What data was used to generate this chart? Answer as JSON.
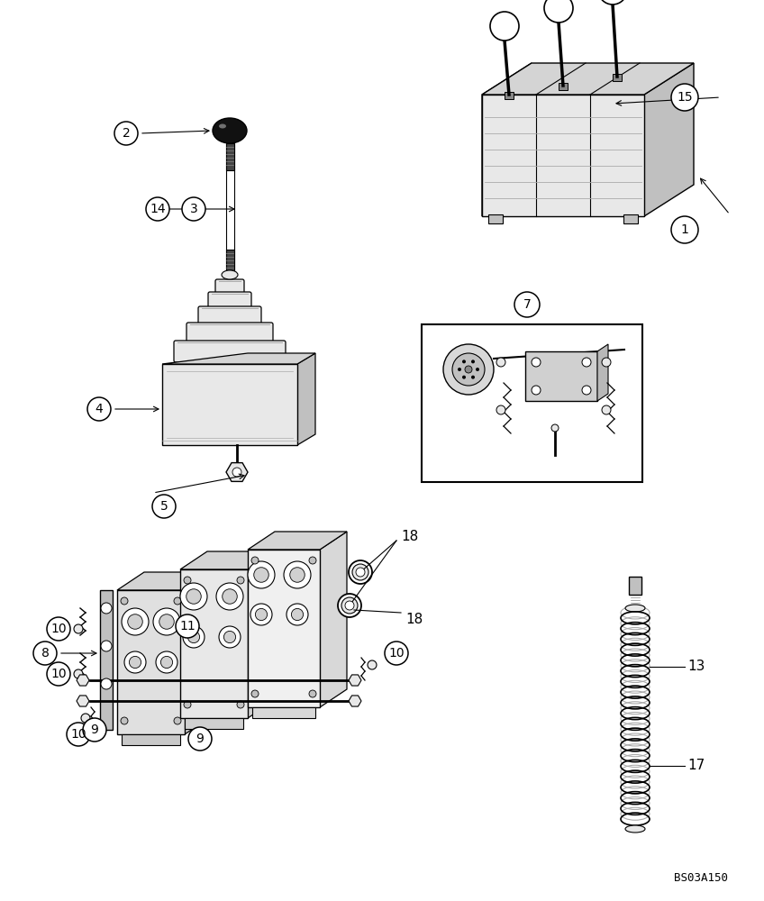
{
  "bg_color": "#ffffff",
  "label_font_size": 11,
  "watermark": "BS03A150",
  "lw_main": 1.2,
  "lw_thin": 0.7,
  "gray_face": "#e8e8e8",
  "dark_face": "#c0c0c0",
  "mid_gray": "#d4d4d4"
}
